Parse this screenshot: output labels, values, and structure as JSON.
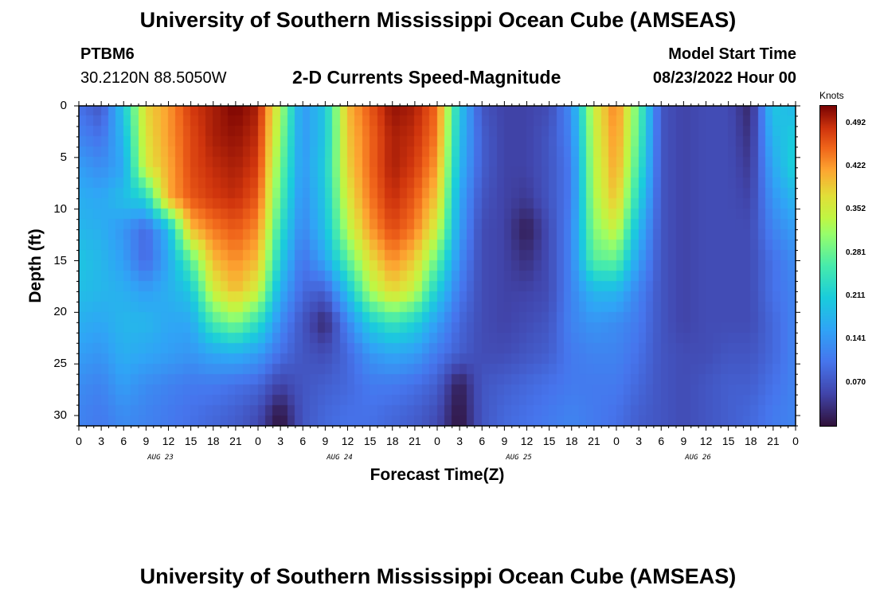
{
  "header": {
    "title": "University of Southern Mississippi Ocean Cube (AMSEAS)",
    "station": "PTBM6",
    "coords": "30.2120N  88.5050W",
    "plot_title": "2-D Currents Speed-Magnitude",
    "model_start_label": "Model Start Time",
    "model_start_value": "08/23/2022 Hour 00"
  },
  "footer": {
    "title": "University of Southern Mississippi Ocean Cube (AMSEAS)"
  },
  "chart_data": {
    "type": "heatmap",
    "title": "2-D Currents Speed-Magnitude",
    "xlabel": "Forecast Time(Z)",
    "ylabel": "Depth (ft)",
    "x_tick_labels": [
      "0",
      "3",
      "6",
      "9",
      "12",
      "15",
      "18",
      "21",
      "0",
      "3",
      "6",
      "9",
      "12",
      "15",
      "18",
      "21",
      "0",
      "3",
      "6",
      "9",
      "12",
      "15",
      "18",
      "21",
      "0",
      "3",
      "6",
      "9",
      "12",
      "15",
      "18",
      "21",
      "0"
    ],
    "day_labels": [
      "AUG 23",
      "AUG 24",
      "AUG 25",
      "AUG 26"
    ],
    "y_ticks": [
      0,
      5,
      10,
      15,
      20,
      25,
      30
    ],
    "xlim_hours": [
      0,
      96
    ],
    "ylim_ft": [
      0,
      31
    ],
    "colorbar": {
      "label": "Knots",
      "ticks": [
        "0.492",
        "0.422",
        "0.352",
        "0.281",
        "0.211",
        "0.141",
        "0.070"
      ],
      "range": [
        0,
        0.52
      ]
    },
    "depths_ft": [
      0,
      3,
      6,
      9,
      12,
      15,
      18,
      21,
      24,
      27,
      30
    ],
    "hours": [
      0,
      3,
      6,
      9,
      12,
      15,
      18,
      21,
      24,
      27,
      30,
      33,
      36,
      39,
      42,
      45,
      48,
      51,
      54,
      57,
      60,
      63,
      66,
      69,
      72,
      75,
      78,
      81,
      84,
      87,
      90,
      93,
      96
    ],
    "speed_knots": [
      [
        0.1,
        0.07,
        0.2,
        0.38,
        0.42,
        0.48,
        0.5,
        0.52,
        0.5,
        0.33,
        0.14,
        0.2,
        0.4,
        0.46,
        0.51,
        0.5,
        0.45,
        0.2,
        0.07,
        0.05,
        0.05,
        0.06,
        0.13,
        0.35,
        0.44,
        0.28,
        0.07,
        0.05,
        0.06,
        0.06,
        0.02,
        0.2,
        0.18
      ],
      [
        0.12,
        0.1,
        0.18,
        0.37,
        0.42,
        0.47,
        0.5,
        0.51,
        0.49,
        0.31,
        0.14,
        0.2,
        0.39,
        0.45,
        0.5,
        0.49,
        0.44,
        0.19,
        0.08,
        0.05,
        0.05,
        0.07,
        0.12,
        0.34,
        0.43,
        0.27,
        0.07,
        0.05,
        0.06,
        0.06,
        0.03,
        0.18,
        0.21
      ],
      [
        0.15,
        0.13,
        0.16,
        0.36,
        0.41,
        0.47,
        0.49,
        0.5,
        0.48,
        0.29,
        0.14,
        0.21,
        0.38,
        0.45,
        0.5,
        0.48,
        0.42,
        0.18,
        0.08,
        0.05,
        0.05,
        0.07,
        0.11,
        0.33,
        0.42,
        0.25,
        0.07,
        0.05,
        0.06,
        0.06,
        0.04,
        0.16,
        0.22
      ],
      [
        0.17,
        0.16,
        0.19,
        0.22,
        0.41,
        0.46,
        0.48,
        0.49,
        0.46,
        0.27,
        0.13,
        0.2,
        0.36,
        0.44,
        0.49,
        0.46,
        0.39,
        0.16,
        0.07,
        0.05,
        0.04,
        0.07,
        0.11,
        0.32,
        0.4,
        0.22,
        0.07,
        0.05,
        0.06,
        0.06,
        0.05,
        0.14,
        0.18
      ],
      [
        0.18,
        0.17,
        0.14,
        0.09,
        0.18,
        0.4,
        0.44,
        0.46,
        0.43,
        0.24,
        0.12,
        0.19,
        0.33,
        0.42,
        0.47,
        0.44,
        0.35,
        0.15,
        0.06,
        0.05,
        0.01,
        0.06,
        0.12,
        0.3,
        0.35,
        0.18,
        0.07,
        0.05,
        0.06,
        0.06,
        0.06,
        0.12,
        0.15
      ],
      [
        0.2,
        0.18,
        0.15,
        0.09,
        0.16,
        0.27,
        0.4,
        0.43,
        0.4,
        0.21,
        0.1,
        0.16,
        0.27,
        0.37,
        0.43,
        0.39,
        0.28,
        0.13,
        0.06,
        0.05,
        0.03,
        0.06,
        0.12,
        0.27,
        0.28,
        0.15,
        0.07,
        0.05,
        0.06,
        0.06,
        0.06,
        0.1,
        0.13
      ],
      [
        0.19,
        0.18,
        0.17,
        0.15,
        0.17,
        0.2,
        0.35,
        0.4,
        0.35,
        0.17,
        0.09,
        0.08,
        0.19,
        0.32,
        0.38,
        0.34,
        0.21,
        0.11,
        0.06,
        0.05,
        0.05,
        0.06,
        0.12,
        0.18,
        0.18,
        0.12,
        0.07,
        0.05,
        0.06,
        0.06,
        0.06,
        0.1,
        0.12
      ],
      [
        0.17,
        0.16,
        0.18,
        0.18,
        0.16,
        0.16,
        0.26,
        0.3,
        0.24,
        0.13,
        0.07,
        0.02,
        0.12,
        0.21,
        0.25,
        0.22,
        0.15,
        0.09,
        0.06,
        0.05,
        0.06,
        0.07,
        0.12,
        0.14,
        0.13,
        0.11,
        0.07,
        0.05,
        0.06,
        0.06,
        0.06,
        0.09,
        0.12
      ],
      [
        0.15,
        0.14,
        0.17,
        0.16,
        0.15,
        0.14,
        0.16,
        0.17,
        0.15,
        0.1,
        0.07,
        0.06,
        0.09,
        0.14,
        0.16,
        0.15,
        0.11,
        0.08,
        0.06,
        0.06,
        0.07,
        0.08,
        0.11,
        0.12,
        0.12,
        0.1,
        0.07,
        0.06,
        0.06,
        0.07,
        0.07,
        0.09,
        0.12
      ],
      [
        0.13,
        0.12,
        0.15,
        0.13,
        0.12,
        0.11,
        0.11,
        0.1,
        0.09,
        0.05,
        0.07,
        0.08,
        0.09,
        0.11,
        0.11,
        0.1,
        0.08,
        0.01,
        0.07,
        0.08,
        0.09,
        0.1,
        0.11,
        0.11,
        0.11,
        0.09,
        0.07,
        0.06,
        0.07,
        0.08,
        0.08,
        0.1,
        0.12
      ],
      [
        0.12,
        0.11,
        0.13,
        0.12,
        0.11,
        0.1,
        0.09,
        0.08,
        0.06,
        0.0,
        0.07,
        0.09,
        0.1,
        0.1,
        0.09,
        0.08,
        0.06,
        0.0,
        0.07,
        0.09,
        0.1,
        0.11,
        0.12,
        0.11,
        0.1,
        0.08,
        0.07,
        0.06,
        0.07,
        0.08,
        0.09,
        0.11,
        0.12
      ]
    ]
  }
}
